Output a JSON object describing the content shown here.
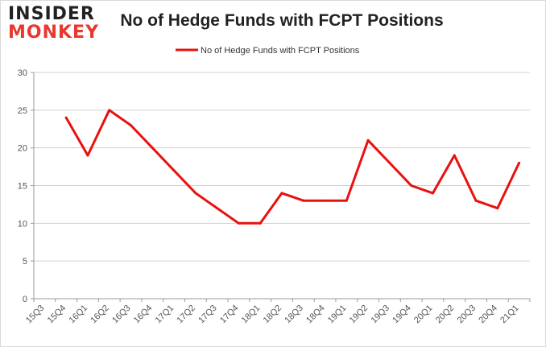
{
  "logo": {
    "top": "INSIDER",
    "bottom": "MONKEY"
  },
  "colors": {
    "series": "#e8110f",
    "grid": "#d0d0d0",
    "axis": "#999999",
    "logo_accent": "#e8382e"
  },
  "chart_data": {
    "type": "line",
    "title": "No of Hedge Funds with FCPT Positions",
    "xlabel": "",
    "ylabel": "",
    "categories": [
      "15Q3",
      "15Q4",
      "16Q1",
      "16Q2",
      "16Q3",
      "16Q4",
      "17Q1",
      "17Q2",
      "17Q3",
      "17Q4",
      "18Q1",
      "18Q2",
      "18Q3",
      "18Q4",
      "19Q1",
      "19Q2",
      "19Q3",
      "19Q4",
      "20Q1",
      "20Q2",
      "20Q3",
      "20Q4",
      "21Q1"
    ],
    "series": [
      {
        "name": "No of Hedge Funds with FCPT Positions",
        "values": [
          null,
          24,
          19,
          25,
          23,
          20,
          17,
          14,
          12,
          10,
          10,
          14,
          13,
          13,
          13,
          21,
          18,
          15,
          14,
          19,
          13,
          12,
          18
        ]
      }
    ],
    "ylim": [
      0,
      30
    ],
    "yticks": [
      0,
      5,
      10,
      15,
      20,
      25,
      30
    ],
    "grid": true,
    "legend": "top-center"
  }
}
